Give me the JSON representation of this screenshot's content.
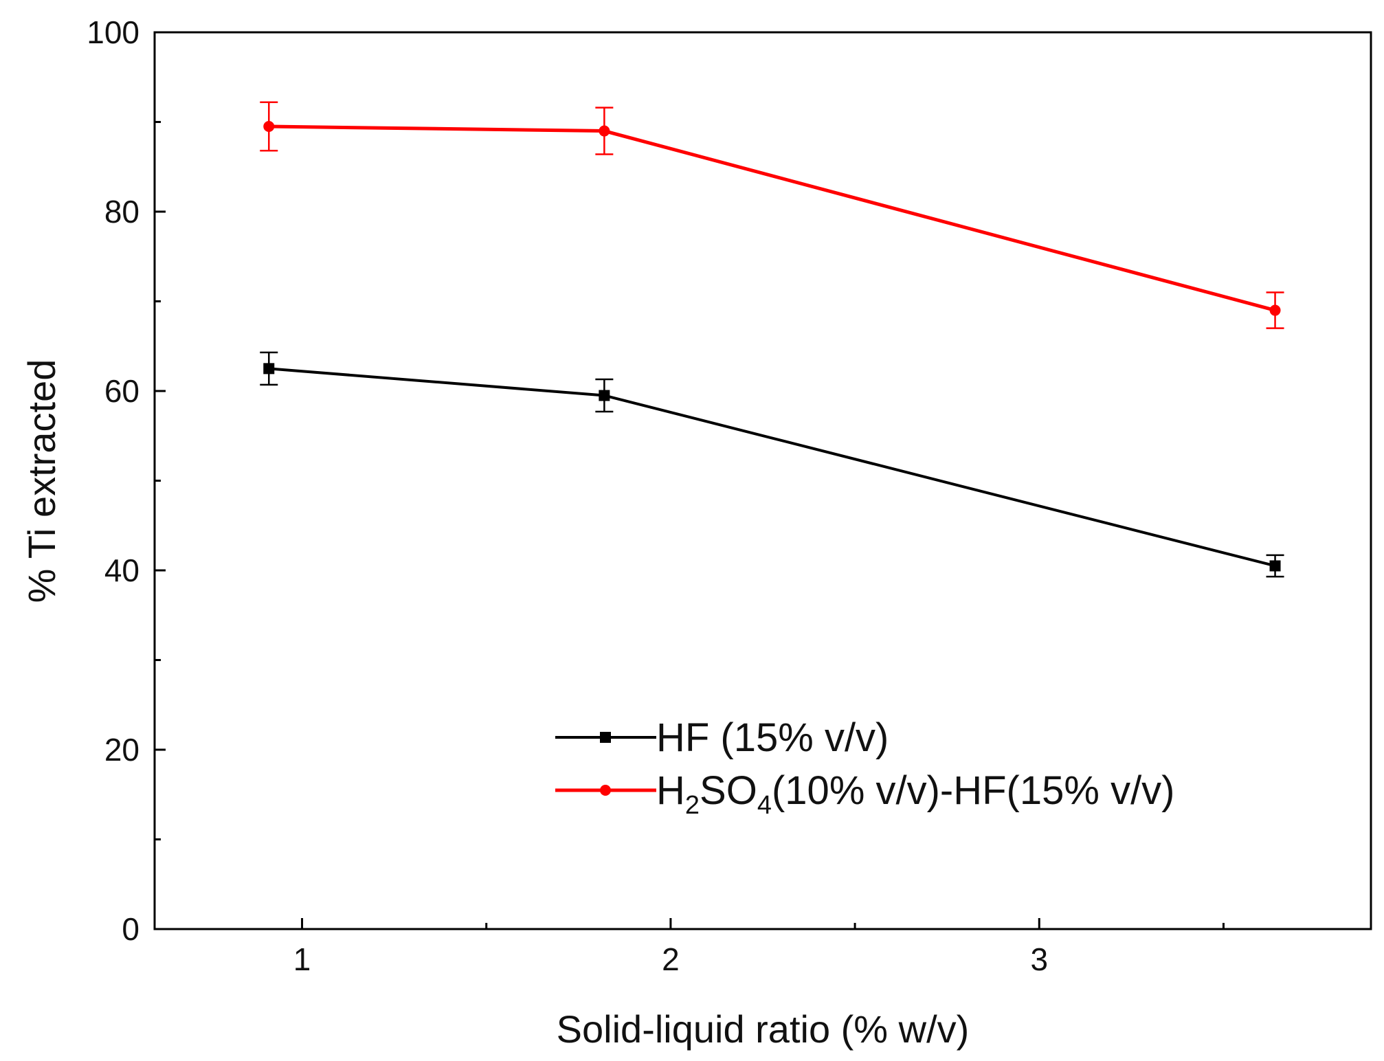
{
  "chart_data": {
    "type": "line",
    "title": "",
    "xlabel": "Solid-liquid ratio (% w/v)",
    "ylabel": "% Ti extracted",
    "xlim": [
      0.6,
      3.9
    ],
    "ylim": [
      0,
      100
    ],
    "grid": false,
    "x_major_ticks": [
      1,
      2,
      3
    ],
    "x_minor_ticks": [
      1.5,
      2.5,
      3.5
    ],
    "y_major_ticks": [
      0,
      20,
      40,
      60,
      80,
      100
    ],
    "y_minor_ticks": [
      10,
      30,
      50,
      70,
      90
    ],
    "legend_position": "lower-right",
    "series": [
      {
        "name": "HF (15% v/v)",
        "color": "#000000",
        "marker": "square",
        "x": [
          0.91,
          1.82,
          3.64
        ],
        "y": [
          62.5,
          59.5,
          40.5
        ],
        "error": [
          1.8,
          1.8,
          1.2
        ]
      },
      {
        "name": "H2SO4(10% v/v)-HF(15% v/v)",
        "color": "#ff0000",
        "marker": "circle",
        "x": [
          0.91,
          1.82,
          3.64
        ],
        "y": [
          89.5,
          89.0,
          69.0
        ],
        "error": [
          2.7,
          2.6,
          2.0
        ]
      }
    ],
    "legend_labels": {
      "hf": "HF (15% v/v)",
      "mix_h": "H",
      "mix_sub2": "2",
      "mix_so": "SO",
      "mix_sub4": "4",
      "mix_rest": "(10% v/v)-HF(15% v/v)"
    }
  }
}
